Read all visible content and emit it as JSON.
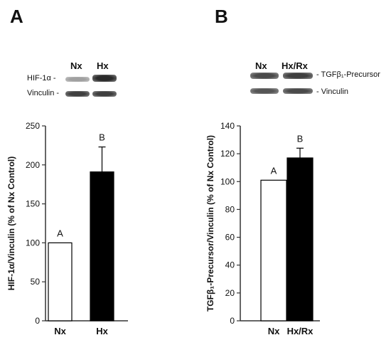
{
  "panels": [
    {
      "letter": "A",
      "blot": {
        "lanes": [
          "Nx",
          "Hx"
        ],
        "rows": [
          {
            "label": "HIF-1α -",
            "band_intensity": [
              0.35,
              0.9
            ]
          },
          {
            "label": "Vinculin -",
            "band_intensity": [
              0.8,
              0.8
            ]
          }
        ]
      }
    },
    {
      "letter": "B",
      "blot": {
        "lanes": [
          "Nx",
          "Hx/Rx"
        ],
        "rows": [
          {
            "label": "- TGFβ₁-Precursor",
            "band_intensity": [
              0.75,
              0.8
            ]
          },
          {
            "label": "- Vinculin",
            "band_intensity": [
              0.7,
              0.75
            ]
          }
        ]
      }
    }
  ],
  "chart_data": [
    {
      "type": "bar",
      "categories": [
        "Nx",
        "Hx"
      ],
      "values": [
        100,
        191
      ],
      "errors": [
        0,
        32
      ],
      "bar_colors": [
        "#ffffff",
        "#000000"
      ],
      "significance": [
        "A",
        "B"
      ],
      "ylabel": "HIF-1α/Vinculin (% of Nx Control)",
      "ylim": [
        0,
        250
      ],
      "yticks": [
        0,
        50,
        100,
        150,
        200,
        250
      ]
    },
    {
      "type": "bar",
      "categories": [
        "Nx",
        "Hx/Rx"
      ],
      "values": [
        101,
        117
      ],
      "errors": [
        0,
        7
      ],
      "bar_colors": [
        "#ffffff",
        "#000000"
      ],
      "significance": [
        "A",
        "B"
      ],
      "ylabel": "TGFβ₁-Precursor/Vinculin (% of Nx Control)",
      "ylim": [
        0,
        140
      ],
      "yticks": [
        0,
        20,
        40,
        60,
        80,
        100,
        120,
        140
      ]
    }
  ]
}
